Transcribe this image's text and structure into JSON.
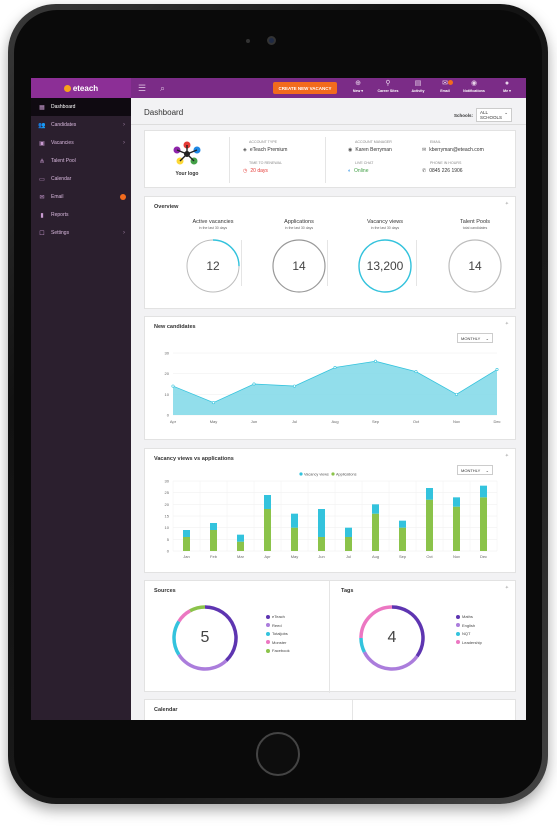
{
  "topbar": {
    "logo_text": "eteach",
    "create_button": "CREATE NEW VACANCY",
    "items": [
      {
        "label": "New ▾",
        "icon": "plus-icon"
      },
      {
        "label": "Career Sites",
        "icon": "career-sites-icon"
      },
      {
        "label": "Activity",
        "icon": "activity-icon"
      },
      {
        "label": "Email",
        "icon": "email-icon"
      },
      {
        "label": "Notifications",
        "icon": "notifications-icon"
      },
      {
        "label": "Me ▾",
        "icon": "avatar-icon"
      }
    ]
  },
  "sidebar": {
    "items": [
      {
        "label": "Dashboard",
        "icon": "dashboard-icon"
      },
      {
        "label": "Candidates",
        "icon": "candidates-icon"
      },
      {
        "label": "Vacancies",
        "icon": "vacancies-icon"
      },
      {
        "label": "Talent Pool",
        "icon": "talent-pool-icon"
      },
      {
        "label": "Calendar",
        "icon": "calendar-icon"
      },
      {
        "label": "Email",
        "icon": "email-icon"
      },
      {
        "label": "Reports",
        "icon": "reports-icon"
      },
      {
        "label": "Settings",
        "icon": "settings-icon"
      }
    ]
  },
  "header": {
    "title": "Dashboard",
    "schools_label": "Schools:",
    "schools_value": "ALL SCHOOLS"
  },
  "account": {
    "logo_caption": "Your logo",
    "account_type_label": "ACCOUNT TYPE",
    "account_type": "eTeach Premium",
    "renewal_label": "TIME TO RENEWAL",
    "renewal": "20 days",
    "manager_label": "ACCOUNT MANAGER",
    "manager": "Karen Berryman",
    "live_chat_label": "LIVE CHAT",
    "live_chat": "Online",
    "email_label": "EMAIL",
    "email": "kberryman@eteach.com",
    "phone_label": "PHONE IN HOURS",
    "phone": "0845 226 1906"
  },
  "overview": {
    "title": "Overview",
    "items": [
      {
        "label": "Active vacancies",
        "sub": "in the last 30 days",
        "value": "12",
        "progress": 0.25
      },
      {
        "label": "Applications",
        "sub": "in the last 30 days",
        "value": "14",
        "progress": 0
      },
      {
        "label": "Vacancy views",
        "sub": "in the last 30 days",
        "value": "13,200",
        "progress": 1
      },
      {
        "label": "Talent Pools",
        "sub": "total candidates",
        "value": "14",
        "progress": 0
      }
    ]
  },
  "new_candidates": {
    "title": "New candidates",
    "period": "MONTHLY"
  },
  "vacancy_views": {
    "title": "Vacancy views vs applications",
    "period": "MONTHLY"
  },
  "sources": {
    "title": "Sources",
    "value": "5",
    "legend": [
      "eTeach",
      "Reed",
      "Totaljobs",
      "Monster",
      "Facebook"
    ]
  },
  "tags": {
    "title": "Tags",
    "value": "4",
    "legend": [
      "Maths",
      "English",
      "NQT",
      "Leadership"
    ]
  },
  "calendar": {
    "title": "Calendar"
  },
  "colors": {
    "brand_purple": "#7b2c87",
    "sidebar": "#2b1f2e",
    "accent_orange": "#f26b1d",
    "cyan": "#33c3dd",
    "green": "#8bc34a",
    "violet": "#5e35b1"
  },
  "chart_data": [
    {
      "type": "area",
      "categories": [
        "Apr",
        "May",
        "Jun",
        "Jul",
        "Aug",
        "Sep",
        "Oct",
        "Nov",
        "Dec"
      ],
      "series": [
        {
          "values": [
            14,
            6,
            15,
            14,
            23,
            26,
            21,
            10,
            22
          ]
        }
      ],
      "ylim": [
        0,
        30
      ],
      "yticks": [
        0,
        10,
        20,
        30
      ]
    },
    {
      "type": "bar",
      "stacked": true,
      "categories": [
        "Jan",
        "Feb",
        "Mar",
        "Apr",
        "May",
        "Jun",
        "Jul",
        "Aug",
        "Sep",
        "Oct",
        "Nov",
        "Dec"
      ],
      "series": [
        {
          "name": "Vacancy views",
          "color": "#33c3dd",
          "values": [
            3,
            3,
            3,
            6,
            6,
            12,
            4,
            4,
            3,
            5,
            4,
            5
          ]
        },
        {
          "name": "Applications",
          "color": "#8bc34a",
          "values": [
            6,
            9,
            4,
            18,
            10,
            6,
            6,
            16,
            10,
            22,
            19,
            23
          ]
        }
      ],
      "ylim": [
        0,
        30
      ],
      "yticks": [
        0,
        5,
        10,
        15,
        20,
        25,
        30
      ],
      "grid": true,
      "legend": "top-center"
    },
    {
      "type": "pie",
      "title": "Sources",
      "categories": [
        "eTeach",
        "Reed",
        "Totaljobs",
        "Monster",
        "Facebook"
      ],
      "colors": [
        "#5e35b1",
        "#ab7ddc",
        "#33c3dd",
        "#ec77c2",
        "#8bc34a"
      ],
      "values": [
        1.9,
        1.4,
        0.9,
        0.4,
        0.4
      ]
    },
    {
      "type": "pie",
      "title": "Tags",
      "categories": [
        "Maths",
        "English",
        "NQT",
        "Leadership"
      ],
      "colors": [
        "#5e35b1",
        "#ab7ddc",
        "#33c3dd",
        "#ec77c2"
      ],
      "values": [
        1.4,
        1.3,
        0.3,
        1.0
      ]
    }
  ]
}
